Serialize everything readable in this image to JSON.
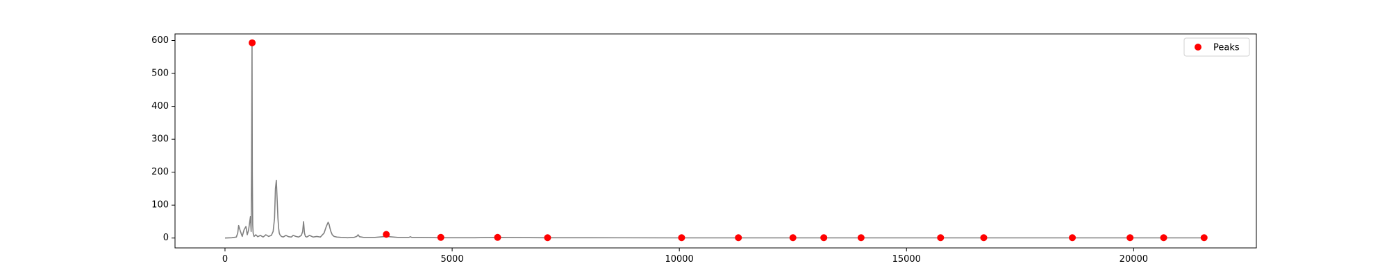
{
  "chart_data": {
    "type": "line",
    "title": "",
    "xlabel": "",
    "ylabel": "",
    "xlim": [
      -1100,
      22700
    ],
    "ylim": [
      -30,
      620
    ],
    "x_ticks": [
      0,
      5000,
      10000,
      15000,
      20000
    ],
    "x_tick_labels": [
      "0",
      "5000",
      "10000",
      "15000",
      "20000"
    ],
    "y_ticks": [
      0,
      100,
      200,
      300,
      400,
      500,
      600
    ],
    "y_tick_labels": [
      "0",
      "100",
      "200",
      "300",
      "400",
      "500",
      "600"
    ],
    "grid": false,
    "legend_position": "top-right",
    "colors": {
      "line": "#808080",
      "peaks": "#ff0000",
      "axes": "#000000"
    },
    "series": [
      {
        "kind": "line",
        "x": [
          0,
          150,
          250,
          280,
          300,
          340,
          380,
          420,
          460,
          490,
          520,
          540,
          560,
          575,
          585,
          595,
          602,
          610,
          620,
          640,
          680,
          720,
          780,
          840,
          900,
          960,
          1020,
          1060,
          1090,
          1110,
          1130,
          1150,
          1165,
          1180,
          1195,
          1210,
          1240,
          1280,
          1340,
          1400,
          1460,
          1500,
          1560,
          1620,
          1680,
          1710,
          1730,
          1750,
          1770,
          1800,
          1860,
          1940,
          2020,
          2100,
          2180,
          2230,
          2270,
          2290,
          2310,
          2330,
          2360,
          2400,
          2460,
          2560,
          2700,
          2840,
          2900,
          2930,
          2960,
          3050,
          3300,
          3550,
          3800,
          4050,
          4080,
          4110,
          4300,
          4700,
          5500,
          6000,
          7000,
          8000,
          10000,
          12000,
          14000,
          16000,
          18000,
          20000,
          21600
        ],
        "values": [
          0,
          1,
          3,
          15,
          38,
          20,
          5,
          25,
          35,
          10,
          25,
          45,
          65,
          20,
          200,
          590,
          200,
          40,
          15,
          5,
          10,
          4,
          8,
          3,
          10,
          5,
          8,
          20,
          60,
          150,
          175,
          110,
          60,
          30,
          15,
          10,
          5,
          3,
          8,
          4,
          3,
          8,
          5,
          3,
          8,
          20,
          50,
          15,
          5,
          3,
          8,
          3,
          5,
          3,
          15,
          35,
          48,
          42,
          30,
          20,
          10,
          5,
          3,
          2,
          1,
          2,
          5,
          10,
          4,
          2,
          2,
          5,
          2,
          2,
          4,
          2,
          2,
          1,
          1,
          2,
          1,
          1,
          0.5,
          0.5,
          0.5,
          0.5,
          0.5,
          0.5,
          0.5
        ]
      },
      {
        "kind": "scatter",
        "name": "Peaks",
        "x": [
          598,
          3550,
          4750,
          6000,
          7100,
          10050,
          11300,
          12500,
          13180,
          14000,
          15750,
          16700,
          18650,
          19920,
          20660,
          21550
        ],
        "values": [
          593,
          11,
          2,
          2,
          1,
          1,
          1,
          1,
          1,
          1,
          1,
          1,
          1,
          1,
          1,
          1
        ]
      }
    ]
  }
}
